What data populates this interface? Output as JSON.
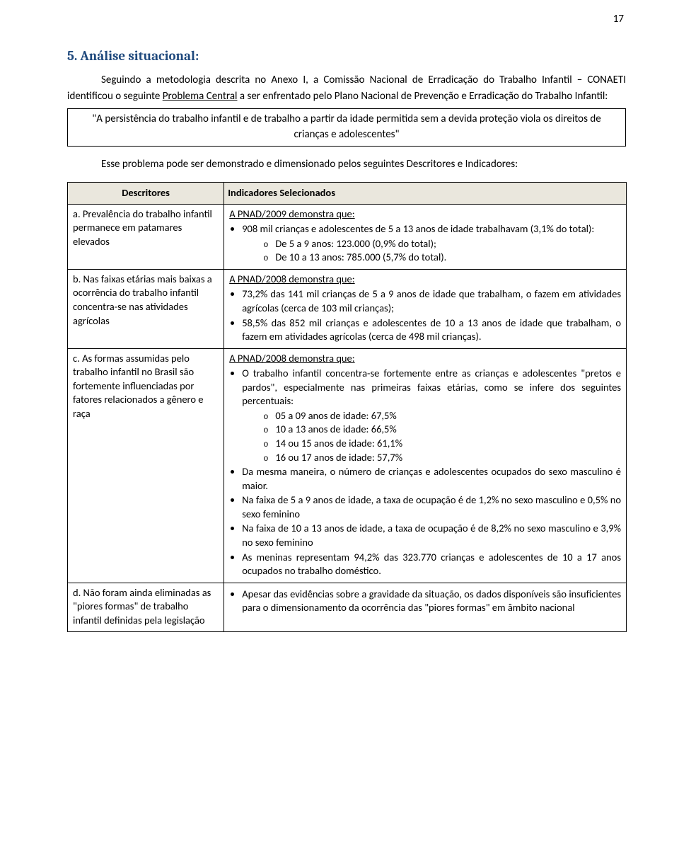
{
  "page_number": "17",
  "section_title": "5. Análise situacional:",
  "intro_paragraph_pre": "Seguindo a metodologia descrita no Anexo I, a Comissão Nacional de Erradicação do Trabalho Infantil – CONAETI identificou o seguinte ",
  "intro_problem_label": "Problema Central",
  "intro_paragraph_post": " a ser enfrentado pelo Plano Nacional de Prevenção e Erradicação do Trabalho Infantil:",
  "box_text": "\"A persistência do trabalho infantil e de trabalho a partir da idade permitida sem a devida proteção viola os direitos de crianças e adolescentes\"",
  "indicators_intro": "Esse problema pode ser demonstrado e dimensionado pelos seguintes Descritores e Indicadores:",
  "table": {
    "header_left": "Descritores",
    "header_right": "Indicadores Selecionados",
    "rows": [
      {
        "descriptor": "a.  Prevalência do trabalho infantil permanece em patamares elevados",
        "lead": "A PNAD/2009 demonstra que:",
        "bullets": [
          {
            "text": "908 mil crianças e adolescentes de 5 a 13 anos de idade trabalhavam (3,1% do total):",
            "sub": [
              "De 5 a 9 anos: 123.000 (0,9% do total);",
              "De 10 a 13 anos: 785.000 (5,7% do total)."
            ]
          }
        ]
      },
      {
        "descriptor": "b.  Nas faixas etárias mais baixas a ocorrência do trabalho infantil concentra-se nas atividades agrícolas",
        "lead": "A PNAD/2008 demonstra que:",
        "bullets": [
          {
            "text": "73,2% das 141 mil crianças de 5 a 9 anos de idade que trabalham, o fazem em atividades agrícolas (cerca de 103 mil crianças);"
          },
          {
            "text": "58,5% das 852 mil crianças e adolescentes de 10 a 13 anos de idade que trabalham, o fazem em atividades agrícolas (cerca de 498 mil crianças)."
          }
        ]
      },
      {
        "descriptor": "c.  As formas assumidas pelo trabalho infantil no Brasil são fortemente influenciadas por fatores relacionados a gênero e raça",
        "lead": "A PNAD/2008 demonstra que:",
        "bullets": [
          {
            "text": "O trabalho infantil concentra-se fortemente entre as crianças e adolescentes \"pretos e pardos\", especialmente nas primeiras faixas etárias, como se infere dos seguintes percentuais:",
            "sub": [
              "05 a 09 anos de idade: 67,5%",
              "10 a 13 anos de idade: 66,5%",
              "14 ou 15 anos de idade: 61,1%",
              "16 ou 17 anos de idade: 57,7%"
            ]
          },
          {
            "text": "Da mesma maneira, o número de crianças e adolescentes ocupados do sexo masculino é maior."
          },
          {
            "text": "Na faixa de 5 a 9 anos de idade, a taxa de ocupação é de 1,2% no sexo masculino e 0,5% no sexo feminino"
          },
          {
            "text": "Na faixa de 10 a 13 anos de idade, a taxa de ocupação é de 8,2% no sexo masculino e 3,9% no sexo feminino"
          },
          {
            "text": "As meninas representam 94,2% das 323.770 crianças e adolescentes de 10 a 17 anos ocupados no trabalho doméstico."
          }
        ]
      },
      {
        "descriptor": "d.  Não foram ainda eliminadas as \"piores formas\" de trabalho infantil definidas pela legislação",
        "bullets": [
          {
            "text": "Apesar das evidências sobre a gravidade da situação, os dados disponíveis são insuficientes para o dimensionamento da ocorrência das \"piores formas\" em âmbito nacional"
          }
        ]
      }
    ]
  }
}
